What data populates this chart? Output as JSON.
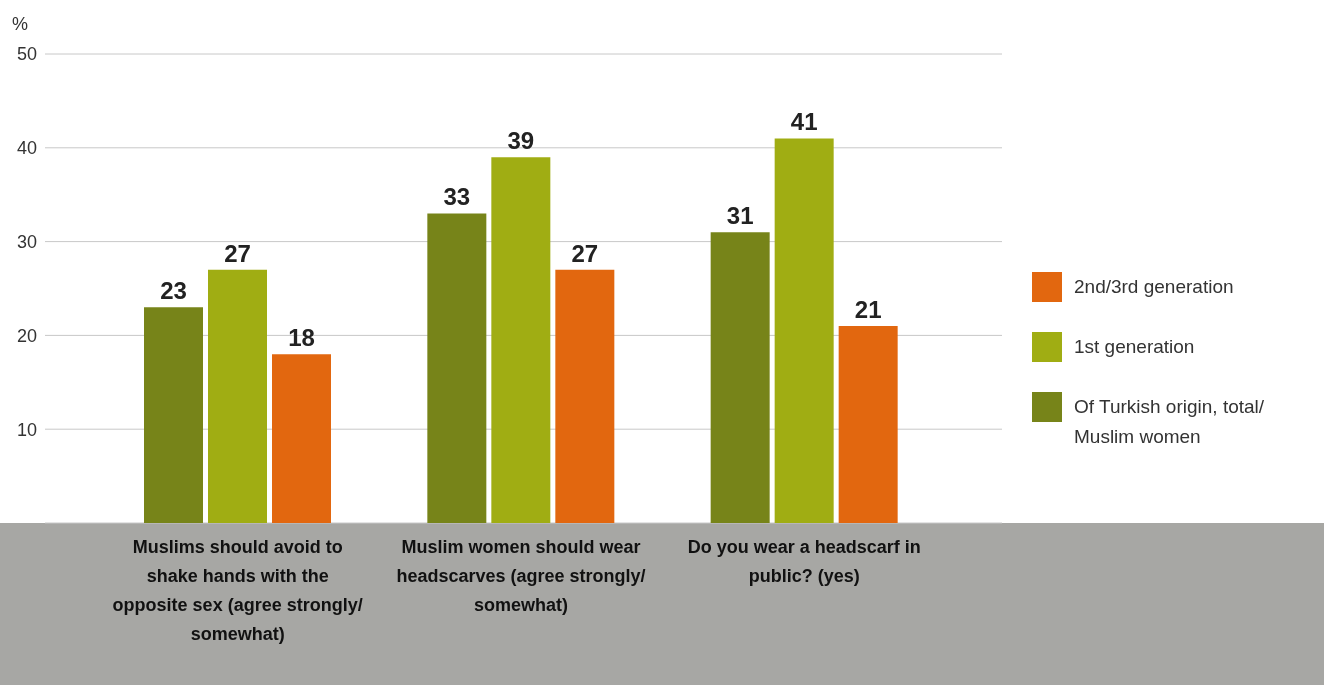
{
  "chart_data": {
    "type": "bar",
    "ylabel": "%",
    "categories": [
      "Muslims should avoid to shake hands with the opposite sex (agree strongly/ somewhat)",
      "Muslim women should wear headscarves (agree strongly/ somewhat)",
      "Do you wear a headscarf in public? (yes)"
    ],
    "series": [
      {
        "name": "Of Turkish origin, total/ Muslim women",
        "color": "#778419",
        "values": [
          23,
          33,
          31
        ]
      },
      {
        "name": "1st generation",
        "color": "#a0ad13",
        "values": [
          27,
          39,
          41
        ]
      },
      {
        "name": "2nd/3rd generation",
        "color": "#e2670f",
        "values": [
          18,
          27,
          21
        ]
      }
    ],
    "ylim": [
      0,
      50
    ],
    "yticks": [
      {
        "value": 0,
        "label": null
      },
      10,
      20,
      30,
      40,
      50
    ],
    "grid": "y",
    "legend": "right",
    "data_labels": true
  }
}
